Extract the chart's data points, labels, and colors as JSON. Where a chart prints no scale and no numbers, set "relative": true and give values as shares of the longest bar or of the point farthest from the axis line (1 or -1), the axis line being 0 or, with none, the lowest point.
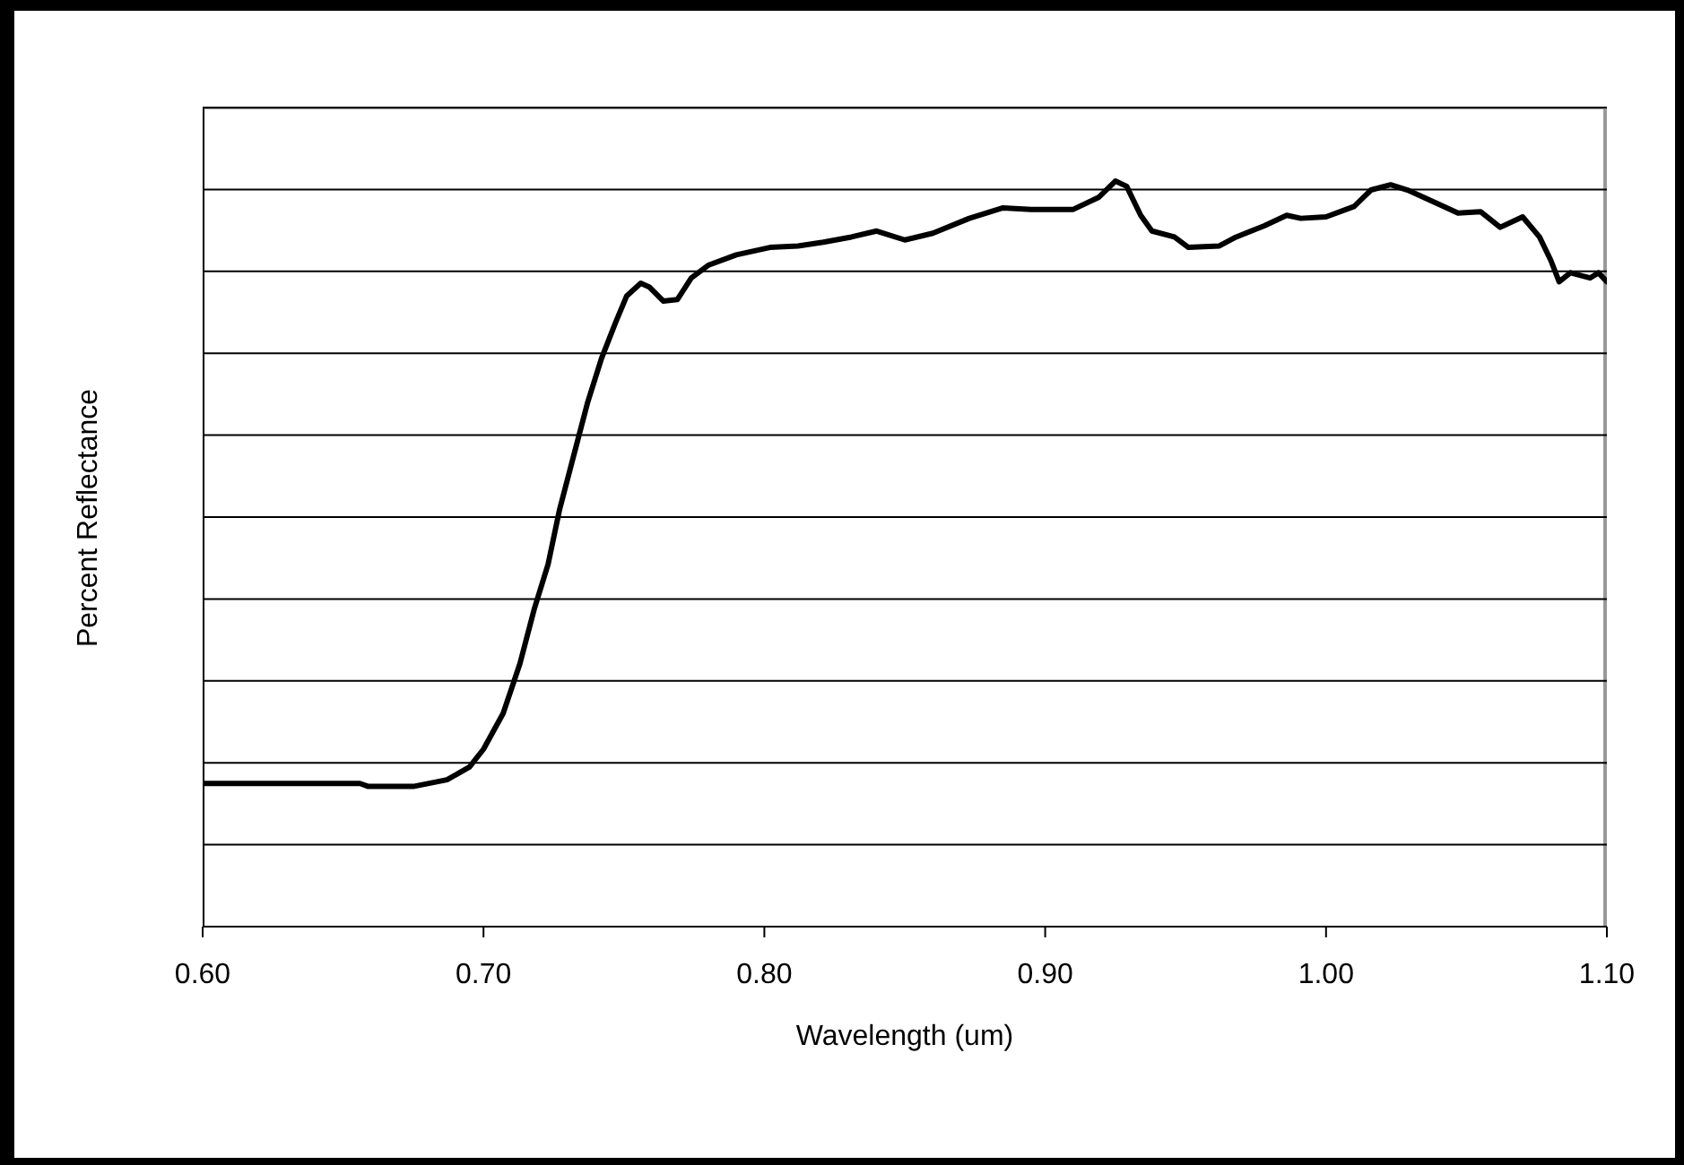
{
  "chart_data": {
    "type": "line",
    "xlabel": "Wavelength (um)",
    "ylabel": "Percent Reflectance",
    "relative": true,
    "grid": "y",
    "legend": false,
    "marker": "none",
    "line_style": "solid",
    "xlim": [
      0.6,
      1.1
    ],
    "xticks": [
      {
        "value": 0.6,
        "label": "0.60"
      },
      {
        "value": 0.7,
        "label": "0.70"
      },
      {
        "value": 0.8,
        "label": "0.80"
      },
      {
        "value": 0.9,
        "label": "0.90"
      },
      {
        "value": 1.0,
        "label": "1.00"
      },
      {
        "value": 1.1,
        "label": "1.10"
      }
    ],
    "x": [
      0.6,
      0.656,
      0.659,
      0.675,
      0.687,
      0.695,
      0.7,
      0.707,
      0.713,
      0.718,
      0.723,
      0.727,
      0.732,
      0.737,
      0.742,
      0.747,
      0.751,
      0.756,
      0.759,
      0.764,
      0.769,
      0.774,
      0.78,
      0.79,
      0.802,
      0.812,
      0.821,
      0.831,
      0.84,
      0.85,
      0.86,
      0.873,
      0.885,
      0.895,
      0.91,
      0.919,
      0.925,
      0.929,
      0.934,
      0.938,
      0.946,
      0.951,
      0.962,
      0.968,
      0.978,
      0.986,
      0.991,
      1.0,
      1.01,
      1.016,
      1.023,
      1.029,
      1.039,
      1.047,
      1.055,
      1.062,
      1.07,
      1.076,
      1.08,
      1.083,
      1.087,
      1.094,
      1.097,
      1.1
    ],
    "series": [
      {
        "color": "#000000",
        "values": [
          0.192,
          0.192,
          0.188,
          0.188,
          0.197,
          0.214,
          0.238,
          0.286,
          0.353,
          0.425,
          0.486,
          0.558,
          0.63,
          0.702,
          0.762,
          0.81,
          0.846,
          0.863,
          0.858,
          0.839,
          0.841,
          0.87,
          0.887,
          0.901,
          0.911,
          0.913,
          0.918,
          0.925,
          0.933,
          0.921,
          0.93,
          0.95,
          0.964,
          0.962,
          0.962,
          0.978,
          1.0,
          0.993,
          0.954,
          0.933,
          0.925,
          0.911,
          0.913,
          0.925,
          0.94,
          0.954,
          0.95,
          0.952,
          0.966,
          0.988,
          0.995,
          0.988,
          0.971,
          0.957,
          0.959,
          0.938,
          0.952,
          0.925,
          0.894,
          0.865,
          0.877,
          0.87,
          0.877,
          0.865
        ]
      }
    ]
  }
}
